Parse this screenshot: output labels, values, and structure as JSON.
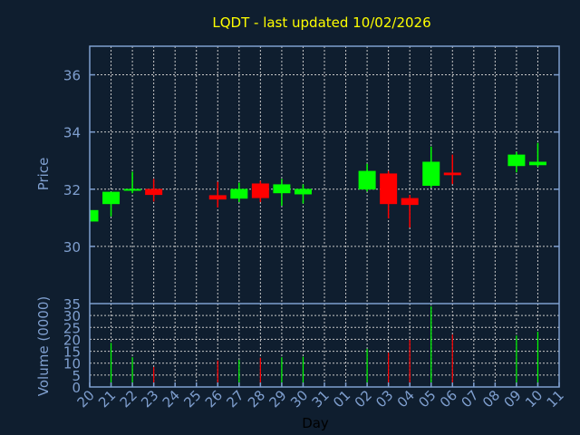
{
  "chart_data": {
    "type": "candlestick",
    "title": "LQDT - last updated 10/02/2026",
    "xlabel": "Day",
    "ylabel": "Price",
    "volume_label": "Volume (0000)",
    "ylim": [
      28,
      37
    ],
    "yticks": [
      30,
      32,
      34,
      36
    ],
    "volume_ylim": [
      0,
      35
    ],
    "volume_ticks": [
      0,
      5,
      10,
      15,
      20,
      25,
      30,
      35
    ],
    "grid": true,
    "x_ticks": [
      "20",
      "21",
      "22",
      "23",
      "24",
      "25",
      "26",
      "27",
      "28",
      "29",
      "30",
      "31",
      "01",
      "02",
      "03",
      "04",
      "05",
      "06",
      "07",
      "08",
      "09",
      "10",
      "11"
    ],
    "up_color": "#00ff00",
    "down_color": "#ff0000",
    "candles": [
      {
        "day": "20",
        "open": 30.87,
        "high": 31.27,
        "low": 30.87,
        "close": 31.27,
        "volume": null
      },
      {
        "day": "21",
        "open": 31.48,
        "high": 31.91,
        "low": 31.05,
        "close": 31.91,
        "volume": 18.5
      },
      {
        "day": "22",
        "open": 31.96,
        "high": 32.61,
        "low": 31.86,
        "close": 32.01,
        "volume": 12.5
      },
      {
        "day": "23",
        "open": 32.01,
        "high": 32.36,
        "low": 31.57,
        "close": 31.8,
        "volume": 8.4
      },
      {
        "day": "26",
        "open": 31.79,
        "high": 32.26,
        "low": 31.36,
        "close": 31.64,
        "volume": 11.1
      },
      {
        "day": "27",
        "open": 31.67,
        "high": 32.23,
        "low": 31.55,
        "close": 32.01,
        "volume": 11.4
      },
      {
        "day": "28",
        "open": 32.2,
        "high": 32.29,
        "low": 31.55,
        "close": 31.69,
        "volume": 12.3
      },
      {
        "day": "29",
        "open": 31.86,
        "high": 32.36,
        "low": 31.42,
        "close": 32.17,
        "volume": 12.5
      },
      {
        "day": "30",
        "open": 31.82,
        "high": 32.17,
        "low": 31.5,
        "close": 32.01,
        "volume": 12.7
      },
      {
        "day": "02",
        "open": 31.99,
        "high": 32.89,
        "low": 31.92,
        "close": 32.64,
        "volume": 16.0
      },
      {
        "day": "03",
        "open": 32.55,
        "high": 32.64,
        "low": 30.98,
        "close": 31.48,
        "volume": 14.4
      },
      {
        "day": "04",
        "open": 31.69,
        "high": 31.8,
        "low": 30.66,
        "close": 31.45,
        "volume": 19.8
      },
      {
        "day": "05",
        "open": 32.12,
        "high": 33.49,
        "low": 32.05,
        "close": 32.96,
        "volume": 33.8
      },
      {
        "day": "06",
        "open": 32.58,
        "high": 33.21,
        "low": 32.18,
        "close": 32.49,
        "volume": 22.0
      },
      {
        "day": "09",
        "open": 32.81,
        "high": 33.3,
        "low": 32.59,
        "close": 33.21,
        "volume": 21.6
      },
      {
        "day": "10",
        "open": 32.84,
        "high": 33.62,
        "low": 32.78,
        "close": 32.96,
        "volume": 23.2
      }
    ]
  }
}
